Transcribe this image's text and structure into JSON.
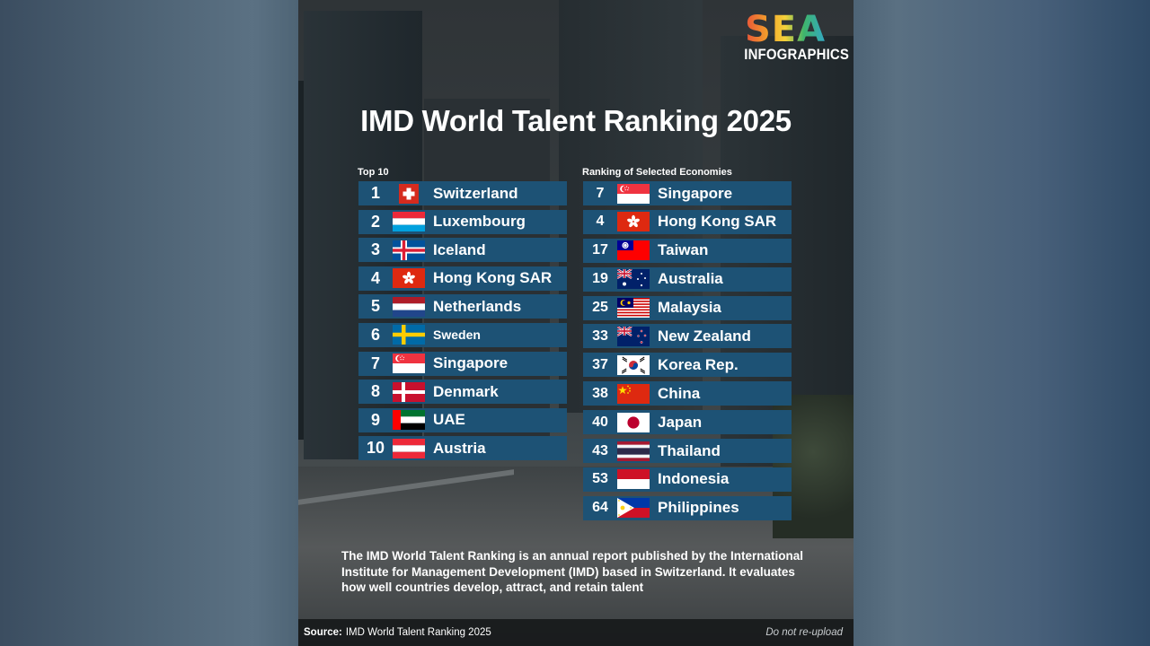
{
  "logo": {
    "line1": "SEA",
    "line2": "INFOGRAPHICS"
  },
  "title": "IMD World Talent Ranking 2025",
  "top10": {
    "label": "Top 10",
    "items": [
      {
        "rank": "1",
        "name": "Switzerland",
        "flag": "switzerland-flag-icon"
      },
      {
        "rank": "2",
        "name": "Luxembourg",
        "flag": "luxembourg-flag-icon"
      },
      {
        "rank": "3",
        "name": "Iceland",
        "flag": "iceland-flag-icon"
      },
      {
        "rank": "4",
        "name": "Hong Kong SAR",
        "flag": "hong-kong-flag-icon"
      },
      {
        "rank": "5",
        "name": "Netherlands",
        "flag": "netherlands-flag-icon"
      },
      {
        "rank": "6",
        "name": "Sweden",
        "flag": "sweden-flag-icon"
      },
      {
        "rank": "7",
        "name": "Singapore",
        "flag": "singapore-flag-icon"
      },
      {
        "rank": "8",
        "name": "Denmark",
        "flag": "denmark-flag-icon"
      },
      {
        "rank": "9",
        "name": "UAE",
        "flag": "uae-flag-icon"
      },
      {
        "rank": "10",
        "name": "Austria",
        "flag": "austria-flag-icon"
      }
    ]
  },
  "selected": {
    "label": "Ranking of Selected Economies",
    "items": [
      {
        "rank": "7",
        "name": "Singapore",
        "flag": "singapore-flag-icon"
      },
      {
        "rank": "4",
        "name": "Hong Kong SAR",
        "flag": "hong-kong-flag-icon"
      },
      {
        "rank": "17",
        "name": "Taiwan",
        "flag": "taiwan-flag-icon"
      },
      {
        "rank": "19",
        "name": "Australia",
        "flag": "australia-flag-icon"
      },
      {
        "rank": "25",
        "name": "Malaysia",
        "flag": "malaysia-flag-icon"
      },
      {
        "rank": "33",
        "name": "New Zealand",
        "flag": "new-zealand-flag-icon"
      },
      {
        "rank": "37",
        "name": "Korea Rep.",
        "flag": "korea-flag-icon"
      },
      {
        "rank": "38",
        "name": "China",
        "flag": "china-flag-icon"
      },
      {
        "rank": "40",
        "name": "Japan",
        "flag": "japan-flag-icon"
      },
      {
        "rank": "43",
        "name": "Thailand",
        "flag": "thailand-flag-icon"
      },
      {
        "rank": "53",
        "name": "Indonesia",
        "flag": "indonesia-flag-icon"
      },
      {
        "rank": "64",
        "name": "Philippines",
        "flag": "philippines-flag-icon"
      }
    ]
  },
  "description": "The IMD World Talent Ranking is an annual report published by the International Institute for Management Development (IMD) based in Switzerland. It evaluates how well countries develop, attract, and retain talent",
  "source": {
    "label": "Source:",
    "text": "IMD World Talent Ranking 2025"
  },
  "notice": "Do not re-upload",
  "colors": {
    "row": "#1d5275",
    "text": "#ffffff"
  }
}
